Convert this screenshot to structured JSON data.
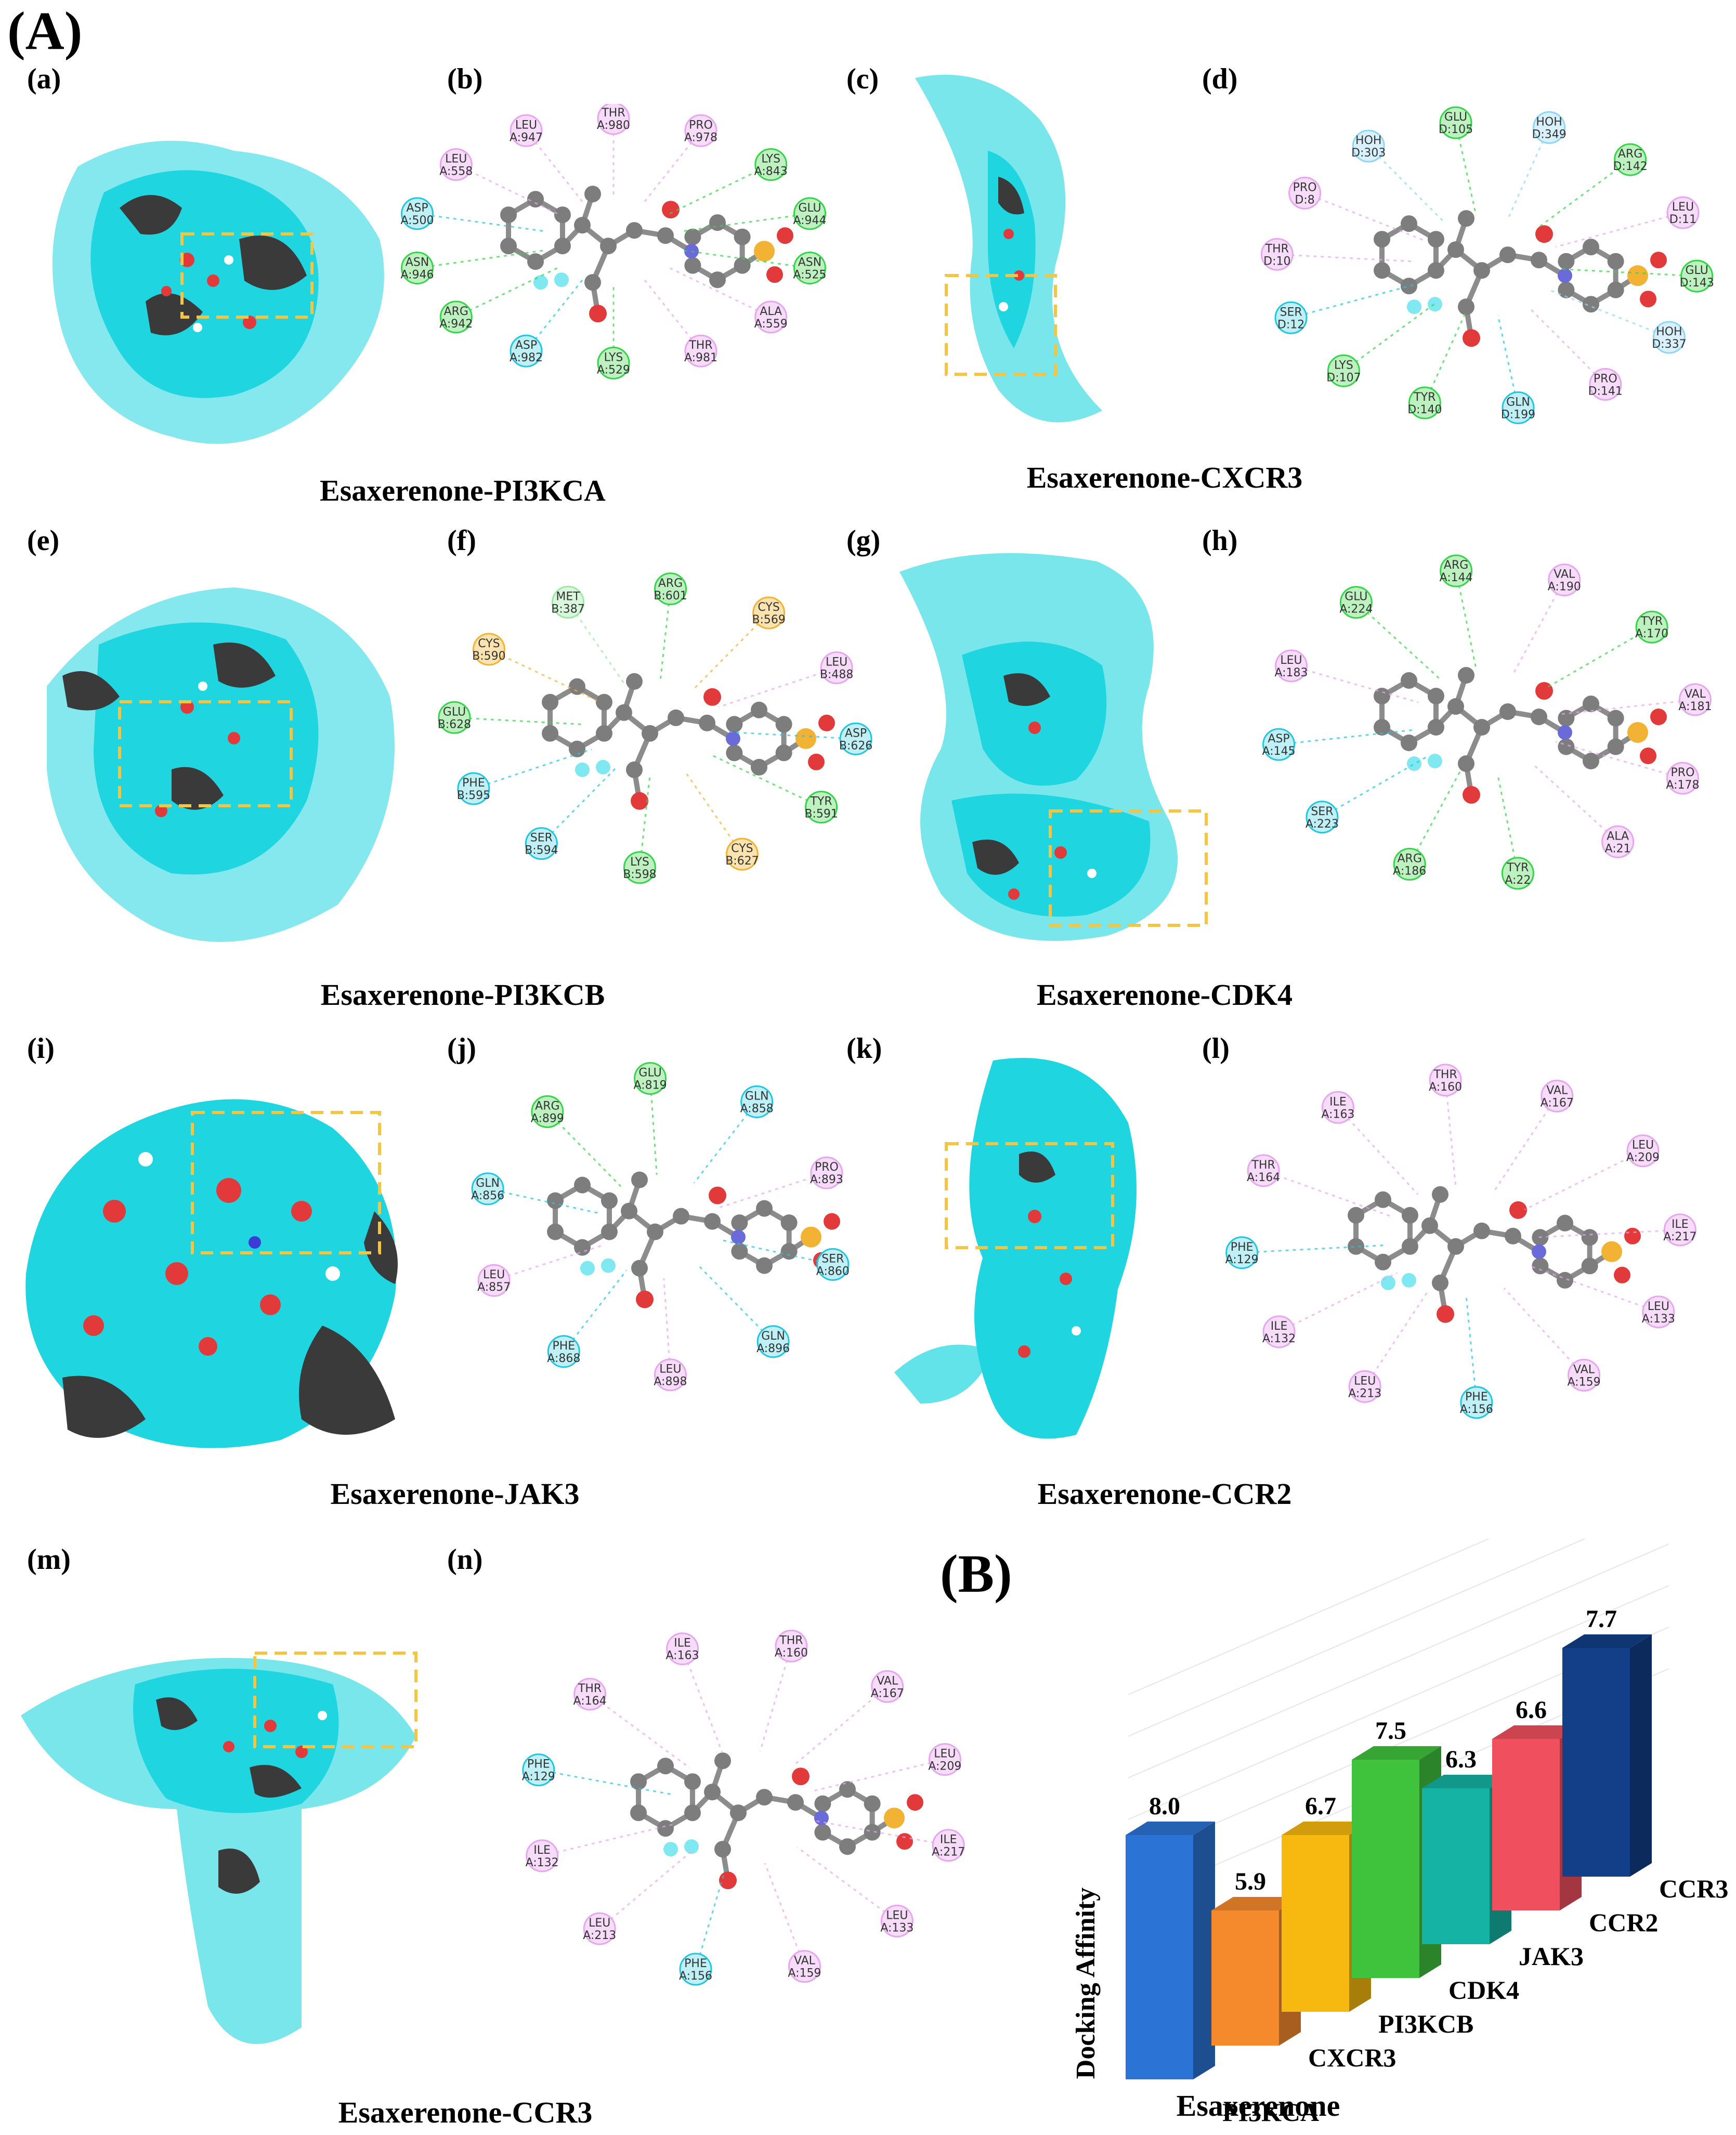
{
  "figure": {
    "label_A": "(A)",
    "label_B": "(B)",
    "panels": [
      {
        "id": "a",
        "label": "(a)"
      },
      {
        "id": "b",
        "label": "(b)"
      },
      {
        "id": "c",
        "label": "(c)"
      },
      {
        "id": "d",
        "label": "(d)"
      },
      {
        "id": "e",
        "label": "(e)"
      },
      {
        "id": "f",
        "label": "(f)"
      },
      {
        "id": "g",
        "label": "(g)"
      },
      {
        "id": "h",
        "label": "(h)"
      },
      {
        "id": "i",
        "label": "(i)"
      },
      {
        "id": "j",
        "label": "(j)"
      },
      {
        "id": "k",
        "label": "(k)"
      },
      {
        "id": "l",
        "label": "(l)"
      },
      {
        "id": "m",
        "label": "(m)"
      },
      {
        "id": "n",
        "label": "(n)"
      }
    ],
    "captions": [
      "Esaxerenone-PI3KCA",
      "Esaxerenone-CXCR3",
      "Esaxerenone-PI3KCB",
      "Esaxerenone-CDK4",
      "Esaxerenone-JAK3",
      "Esaxerenone-CCR2",
      "Esaxerenone-CCR3"
    ],
    "residues": {
      "b": [
        "THR A:980",
        "PRO A:978",
        "LYS A:843",
        "GLU A:944",
        "ASN A:525",
        "ALA A:559",
        "THR A:981",
        "LYS A:529",
        "ASP A:982",
        "ARG A:942",
        "ASN A:946",
        "ASP A:500",
        "LEU A:558",
        "LEU A:947"
      ],
      "d": [
        "HOH D:349",
        "ARG D:142",
        "LEU D:11",
        "GLU D:143",
        "HOH D:337",
        "PRO D:141",
        "GLN D:199",
        "TYR D:140",
        "LYS D:107",
        "SER D:12",
        "THR D:10",
        "PRO D:8",
        "HOH D:303",
        "GLU D:105"
      ],
      "f": [
        "CYS B:569",
        "LEU B:488",
        "ASP B:626",
        "TYR B:591",
        "CYS B:627",
        "LYS B:598",
        "SER B:594",
        "PHE B:595",
        "GLU B:628",
        "CYS B:590",
        "MET B:387",
        "ARG B:601"
      ],
      "h": [
        "TYR A:170",
        "VAL A:181",
        "PRO A:178",
        "ALA A:21",
        "TYR A:22",
        "ARG A:186",
        "SER A:223",
        "ASP A:145",
        "LEU A:183",
        "GLU A:224",
        "ARG A:144",
        "VAL A:190"
      ],
      "j": [
        "PRO A:893",
        "SER A:860",
        "GLN A:896",
        "LEU A:898",
        "PHE A:868",
        "LEU A:857",
        "GLN A:856",
        "ARG A:899",
        "GLU A:819",
        "GLN A:858"
      ],
      "l": [
        "ILE A:217",
        "LEU A:133",
        "VAL A:159",
        "PHE A:156",
        "LEU A:213",
        "ILE A:132",
        "PHE A:129",
        "THR A:164",
        "ILE A:163",
        "THR A:160",
        "VAL A:167",
        "LEU A:209"
      ],
      "n": [
        "ILE A:217",
        "LEU A:133",
        "VAL A:159",
        "PHE A:156",
        "LEU A:213",
        "ILE A:132",
        "PHE A:129",
        "THR A:164",
        "ILE A:163",
        "THR A:160",
        "VAL A:167",
        "LEU A:209"
      ]
    }
  },
  "colors": {
    "protein": "#1fd6e0",
    "dark_surface": "#3a3a3a",
    "oxygen": "#e23a3a",
    "box": "#f5c542",
    "atom": "#7d7d7d",
    "fluorine": "#7fe8f0",
    "sulfur": "#f2b233",
    "nitrogen": "#6a6ad8"
  },
  "chart_data": {
    "type": "bar",
    "style": "3d",
    "ylabel": "Docking Affinity",
    "xlabel": "Esaxerenone",
    "categories": [
      "PI3KCA",
      "CXCR3",
      "PI3KCB",
      "CDK4",
      "JAK3",
      "CCR2",
      "CCR3"
    ],
    "values": [
      8.0,
      5.9,
      6.7,
      7.5,
      6.3,
      6.6,
      7.7
    ],
    "value_labels": [
      "8.0",
      "5.9",
      "6.7",
      "7.5",
      "6.3",
      "6.6",
      "7.7"
    ],
    "bar_colors": [
      "#2b73d4",
      "#f58a2c",
      "#f7b90f",
      "#3fc23c",
      "#15b3a4",
      "#f0505e",
      "#123f87"
    ]
  }
}
